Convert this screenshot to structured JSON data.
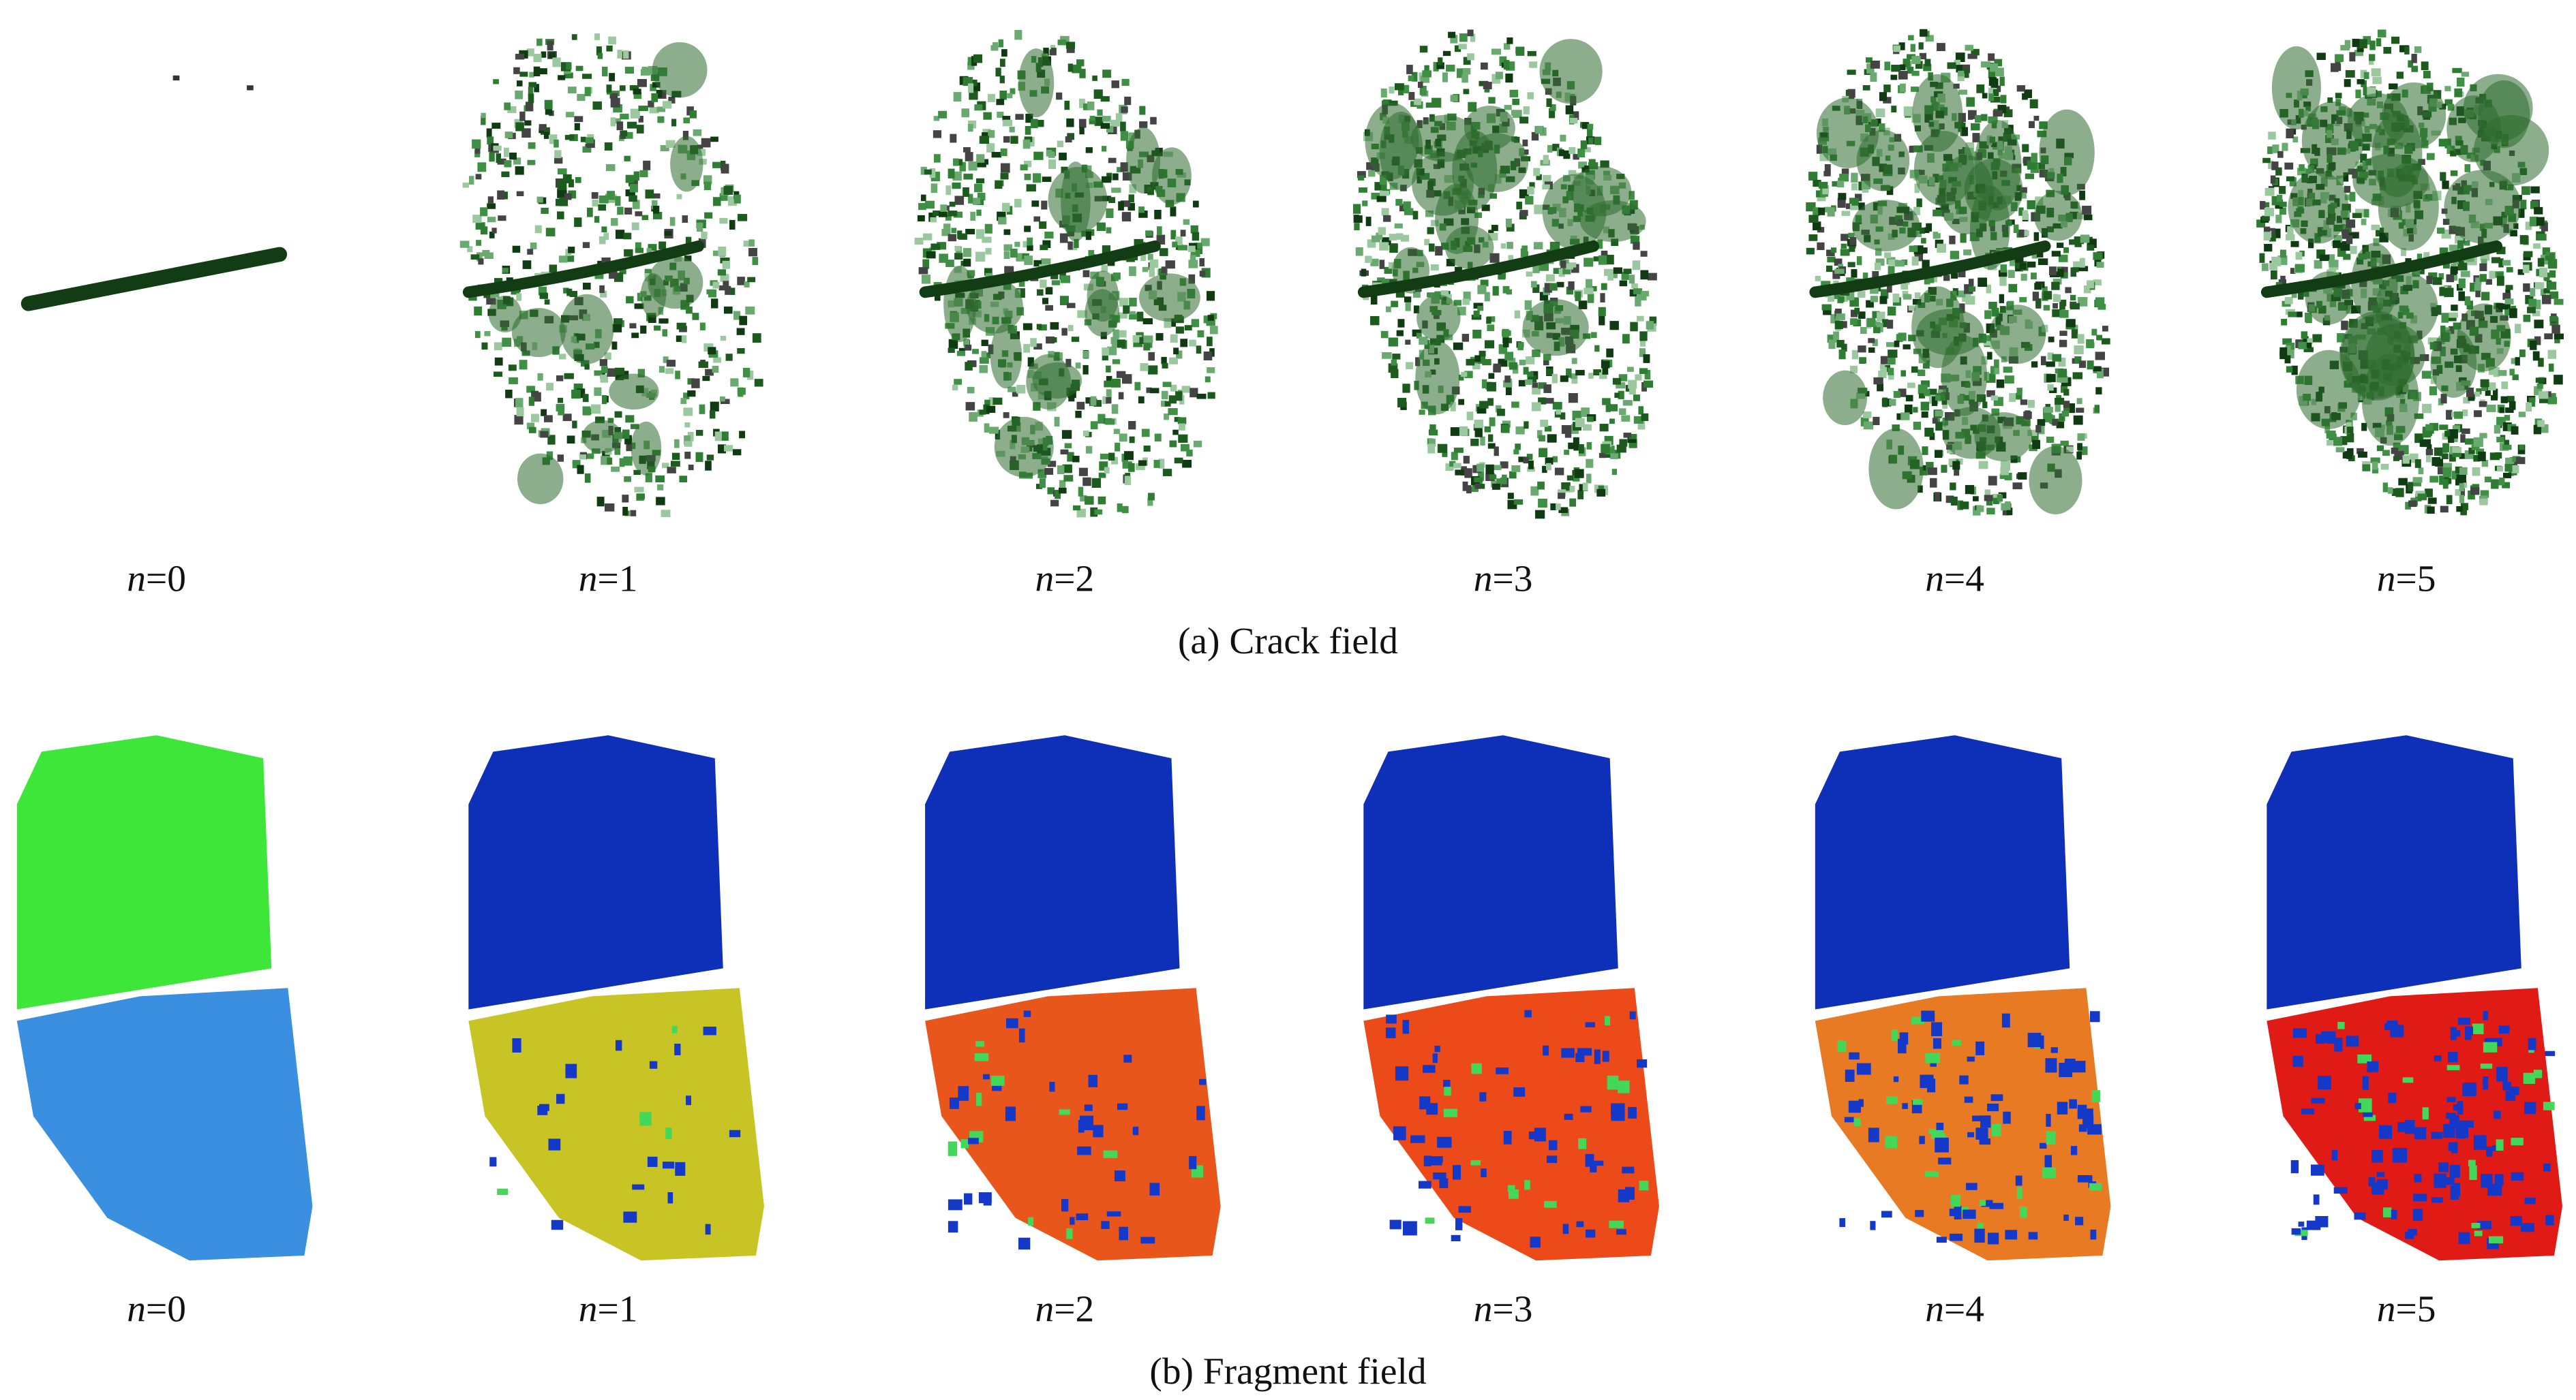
{
  "crack_field": {
    "caption": "(a) Crack field",
    "labels": [
      {
        "symbol": "n",
        "rest": "=0"
      },
      {
        "symbol": "n",
        "rest": "=1"
      },
      {
        "symbol": "n",
        "rest": "=2"
      },
      {
        "symbol": "n",
        "rest": "=3"
      },
      {
        "symbol": "n",
        "rest": "=4"
      },
      {
        "symbol": "n",
        "rest": "=5"
      }
    ]
  },
  "fragment_field": {
    "caption": "(b) Fragment field",
    "labels": [
      {
        "symbol": "n",
        "rest": "=0"
      },
      {
        "symbol": "n",
        "rest": "=1"
      },
      {
        "symbol": "n",
        "rest": "=2"
      },
      {
        "symbol": "n",
        "rest": "=3"
      },
      {
        "symbol": "n",
        "rest": "=4"
      },
      {
        "symbol": "n",
        "rest": "=5"
      }
    ]
  }
}
